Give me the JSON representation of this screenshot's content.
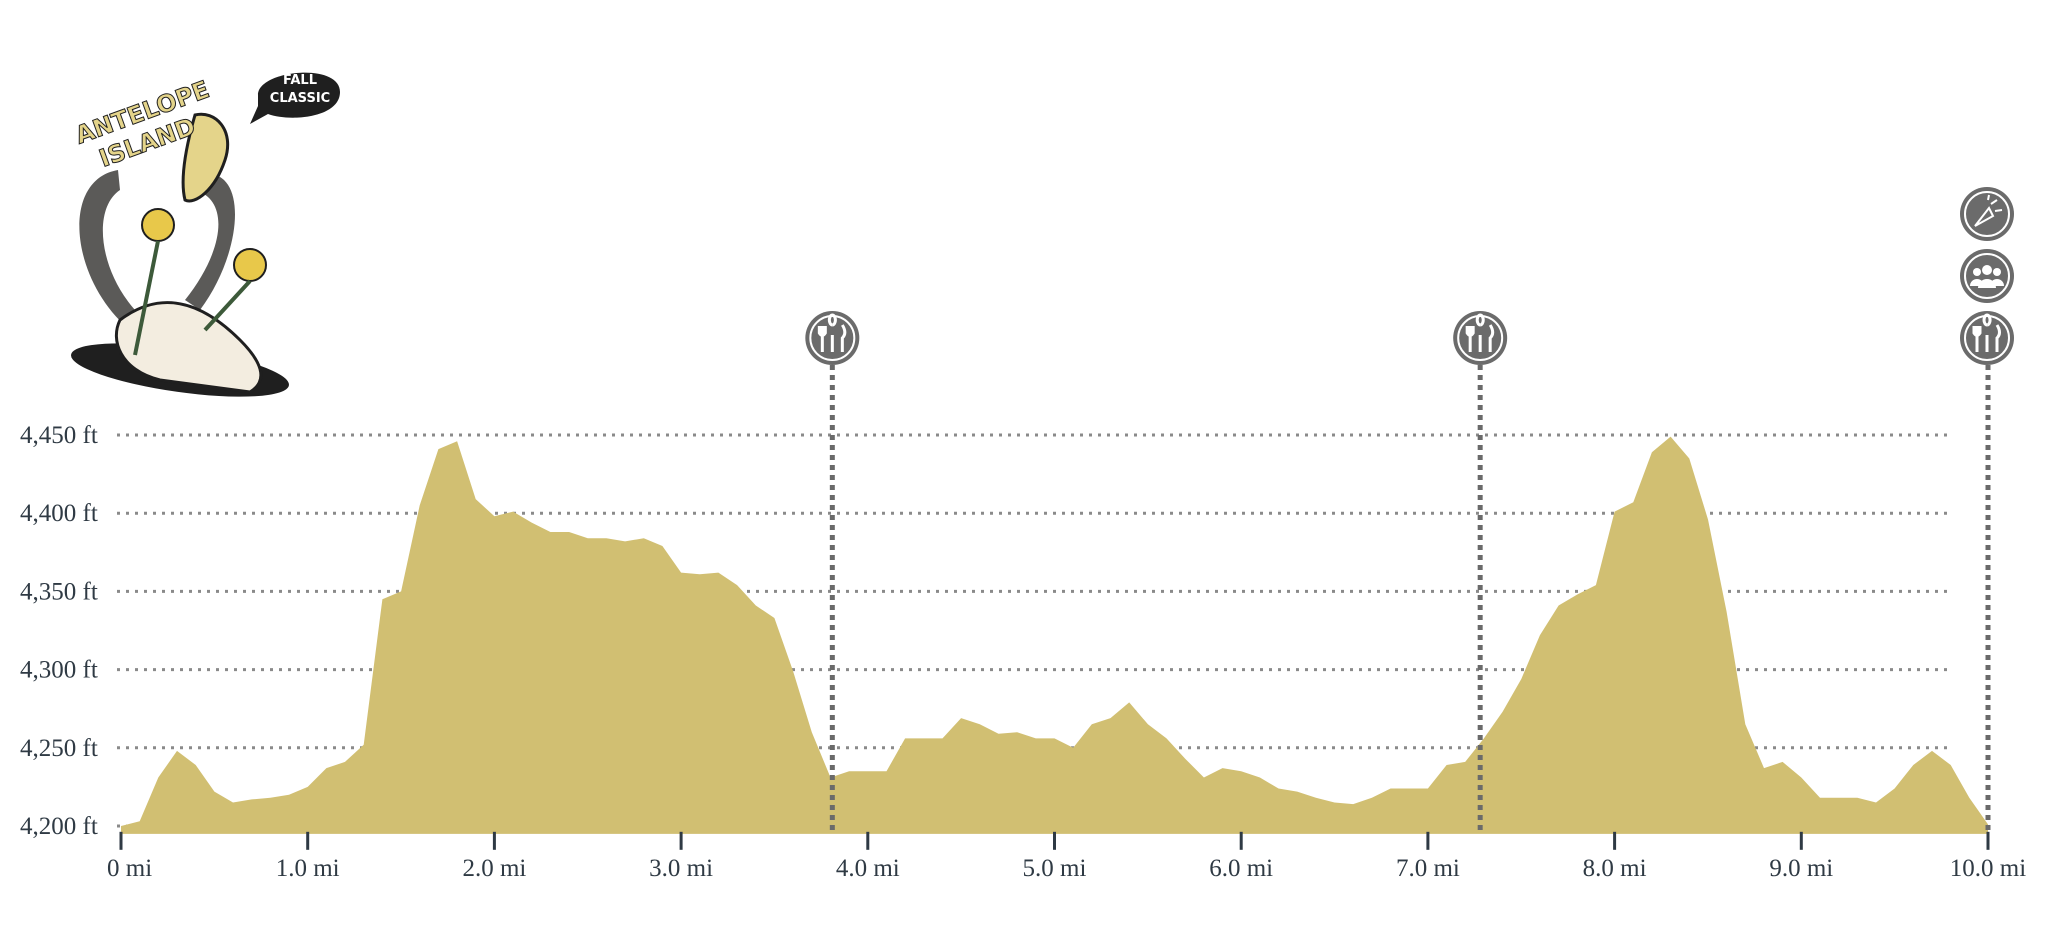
{
  "logo": {
    "title_lines": [
      "ANTELOPE",
      "ISLAND"
    ],
    "bubble_lines": [
      "FALL",
      "CLASSIC"
    ]
  },
  "chart_data": {
    "type": "area",
    "color": "#d1bf72",
    "grid": true,
    "x": [
      0,
      0.1,
      0.2,
      0.3,
      0.4,
      0.5,
      0.6,
      0.7,
      0.8,
      0.9,
      1.0,
      1.1,
      1.2,
      1.3,
      1.4,
      1.5,
      1.6,
      1.7,
      1.8,
      1.9,
      2.0,
      2.1,
      2.2,
      2.3,
      2.4,
      2.5,
      2.6,
      2.7,
      2.8,
      2.9,
      3.0,
      3.1,
      3.2,
      3.3,
      3.4,
      3.5,
      3.6,
      3.7,
      3.8,
      3.9,
      4.0,
      4.1,
      4.2,
      4.3,
      4.4,
      4.5,
      4.6,
      4.7,
      4.8,
      4.9,
      5.0,
      5.1,
      5.2,
      5.3,
      5.4,
      5.5,
      5.6,
      5.7,
      5.8,
      5.9,
      6.0,
      6.1,
      6.2,
      6.3,
      6.4,
      6.5,
      6.6,
      6.7,
      6.8,
      6.9,
      7.0,
      7.1,
      7.2,
      7.3,
      7.4,
      7.5,
      7.6,
      7.7,
      7.8,
      7.9,
      8.0,
      8.1,
      8.2,
      8.3,
      8.4,
      8.5,
      8.6,
      8.7,
      8.8,
      8.9,
      9.0,
      9.1,
      9.2,
      9.3,
      9.4,
      9.5,
      9.6,
      9.7,
      9.8,
      9.9,
      10.0
    ],
    "values": [
      4200,
      4203,
      4231,
      4248,
      4239,
      4222,
      4215,
      4217,
      4218,
      4220,
      4225,
      4237,
      4241,
      4252,
      4345,
      4350,
      4405,
      4441,
      4446,
      4409,
      4398,
      4401,
      4394,
      4388,
      4388,
      4384,
      4384,
      4382,
      4384,
      4379,
      4362,
      4361,
      4362,
      4354,
      4341,
      4333,
      4299,
      4260,
      4231,
      4235,
      4235,
      4235,
      4256,
      4256,
      4256,
      4269,
      4265,
      4259,
      4260,
      4256,
      4256,
      4250,
      4265,
      4269,
      4279,
      4265,
      4256,
      4243,
      4231,
      4237,
      4235,
      4231,
      4224,
      4222,
      4218,
      4215,
      4214,
      4218,
      4224,
      4224,
      4224,
      4239,
      4241,
      4256,
      4273,
      4294,
      4322,
      4341,
      4348,
      4354,
      4401,
      4407,
      4439,
      4449,
      4435,
      4396,
      4337,
      4265,
      4237,
      4241,
      4231,
      4218,
      4218,
      4218,
      4215,
      4224,
      4239,
      4248,
      4239,
      4218,
      4201
    ],
    "xlim": [
      0,
      10
    ],
    "ylim": [
      4195,
      4460
    ],
    "xticks": [
      {
        "value": 0,
        "label": "0 mi"
      },
      {
        "value": 1,
        "label": "1.0 mi"
      },
      {
        "value": 2,
        "label": "2.0 mi"
      },
      {
        "value": 3,
        "label": "3.0 mi"
      },
      {
        "value": 4,
        "label": "4.0 mi"
      },
      {
        "value": 5,
        "label": "5.0 mi"
      },
      {
        "value": 6,
        "label": "6.0 mi"
      },
      {
        "value": 7,
        "label": "7.0 mi"
      },
      {
        "value": 8,
        "label": "8.0 mi"
      },
      {
        "value": 9,
        "label": "9.0 mi"
      },
      {
        "value": 10,
        "label": "10.0 mi"
      }
    ],
    "yticks": [
      {
        "value": 4200,
        "label": "4,200 ft"
      },
      {
        "value": 4250,
        "label": "4,250 ft"
      },
      {
        "value": 4300,
        "label": "4,300 ft"
      },
      {
        "value": 4350,
        "label": "4,350 ft"
      },
      {
        "value": 4400,
        "label": "4,400 ft"
      },
      {
        "value": 4450,
        "label": "4,450 ft"
      }
    ],
    "stations": [
      {
        "mile": 3.81,
        "icons": [
          "food"
        ]
      },
      {
        "mile": 7.28,
        "icons": [
          "food"
        ]
      },
      {
        "mile": 10.0,
        "icons": [
          "food",
          "crew",
          "party"
        ]
      }
    ]
  }
}
